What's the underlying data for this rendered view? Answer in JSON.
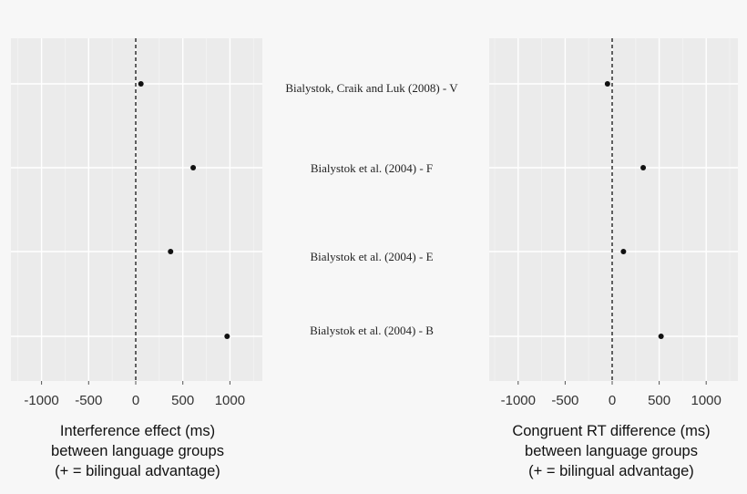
{
  "chart_data": [
    {
      "type": "scatter",
      "xlabel": [
        "Interference effect (ms)",
        "between language groups",
        "(+ = bilingual advantage)"
      ],
      "xlim": [
        -1300,
        1300
      ],
      "xticks": [
        -1000,
        -500,
        0,
        500,
        1000
      ],
      "xtick_labels": [
        "-1000",
        "-500",
        "0",
        "500",
        "1000"
      ],
      "reference_line": 0,
      "grid": true,
      "points": [
        {
          "study": "Bialystok, Craik and Luk (2008) - V",
          "x": 55
        },
        {
          "study": "Bialystok et al. (2004) - F",
          "x": 610
        },
        {
          "study": "Bialystok et al. (2004) - E",
          "x": 370
        },
        {
          "study": "Bialystok et al. (2004) -  B",
          "x": 970
        }
      ]
    },
    {
      "type": "scatter",
      "xlabel": [
        "Congruent RT difference (ms)",
        "between language groups",
        "(+ = bilingual advantage)"
      ],
      "xlim": [
        -1300,
        1300
      ],
      "xticks": [
        -1000,
        -500,
        0,
        500,
        1000
      ],
      "xtick_labels": [
        "-1000",
        "-500",
        "0",
        "500",
        "1000"
      ],
      "reference_line": 0,
      "grid": true,
      "points": [
        {
          "study": "Bialystok, Craik and Luk (2008) - V",
          "x": -50
        },
        {
          "study": "Bialystok et al. (2004) - F",
          "x": 330
        },
        {
          "study": "Bialystok et al. (2004) - E",
          "x": 120
        },
        {
          "study": "Bialystok et al. (2004) -  B",
          "x": 520
        }
      ]
    }
  ],
  "studies": [
    "Bialystok, Craik and Luk (2008) - V",
    "Bialystok et al. (2004) - F",
    "Bialystok et al. (2004) - E",
    "Bialystok et al. (2004) -  B"
  ]
}
